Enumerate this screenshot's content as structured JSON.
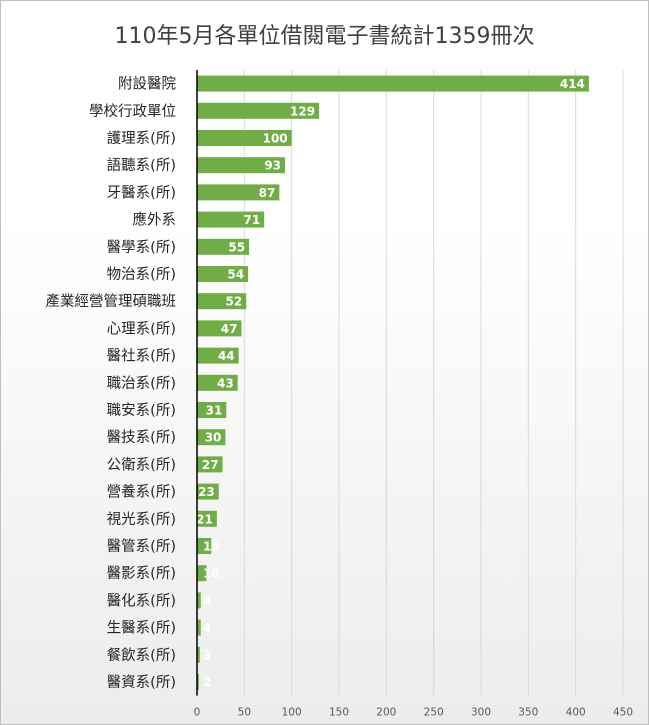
{
  "chart_data": {
    "type": "bar",
    "orientation": "horizontal",
    "title": "110年5月各單位借閱電子書統計1359冊次",
    "xlabel": "",
    "ylabel": "",
    "xlim": [
      0,
      450
    ],
    "xticks": [
      0,
      50,
      100,
      150,
      200,
      250,
      300,
      350,
      400,
      450
    ],
    "grid": true,
    "legend": "none",
    "bar_color": "#70ad47",
    "categories": [
      "附設醫院",
      "學校行政單位",
      "護理系(所)",
      "語聽系(所)",
      "牙醫系(所)",
      "應外系",
      "醫學系(所)",
      "物治系(所)",
      "產業經營管理碩職班",
      "心理系(所)",
      "醫社系(所)",
      "職治系(所)",
      "職安系(所)",
      "醫技系(所)",
      "公衛系(所)",
      "營養系(所)",
      "視光系(所)",
      "醫管系(所)",
      "醫影系(所)",
      "醫化系(所)",
      "生醫系(所)",
      "餐飲系(所)",
      "醫資系(所)"
    ],
    "values": [
      414,
      129,
      100,
      93,
      87,
      71,
      55,
      54,
      52,
      47,
      44,
      43,
      31,
      30,
      27,
      23,
      21,
      15,
      10,
      4,
      4,
      3,
      2
    ]
  }
}
